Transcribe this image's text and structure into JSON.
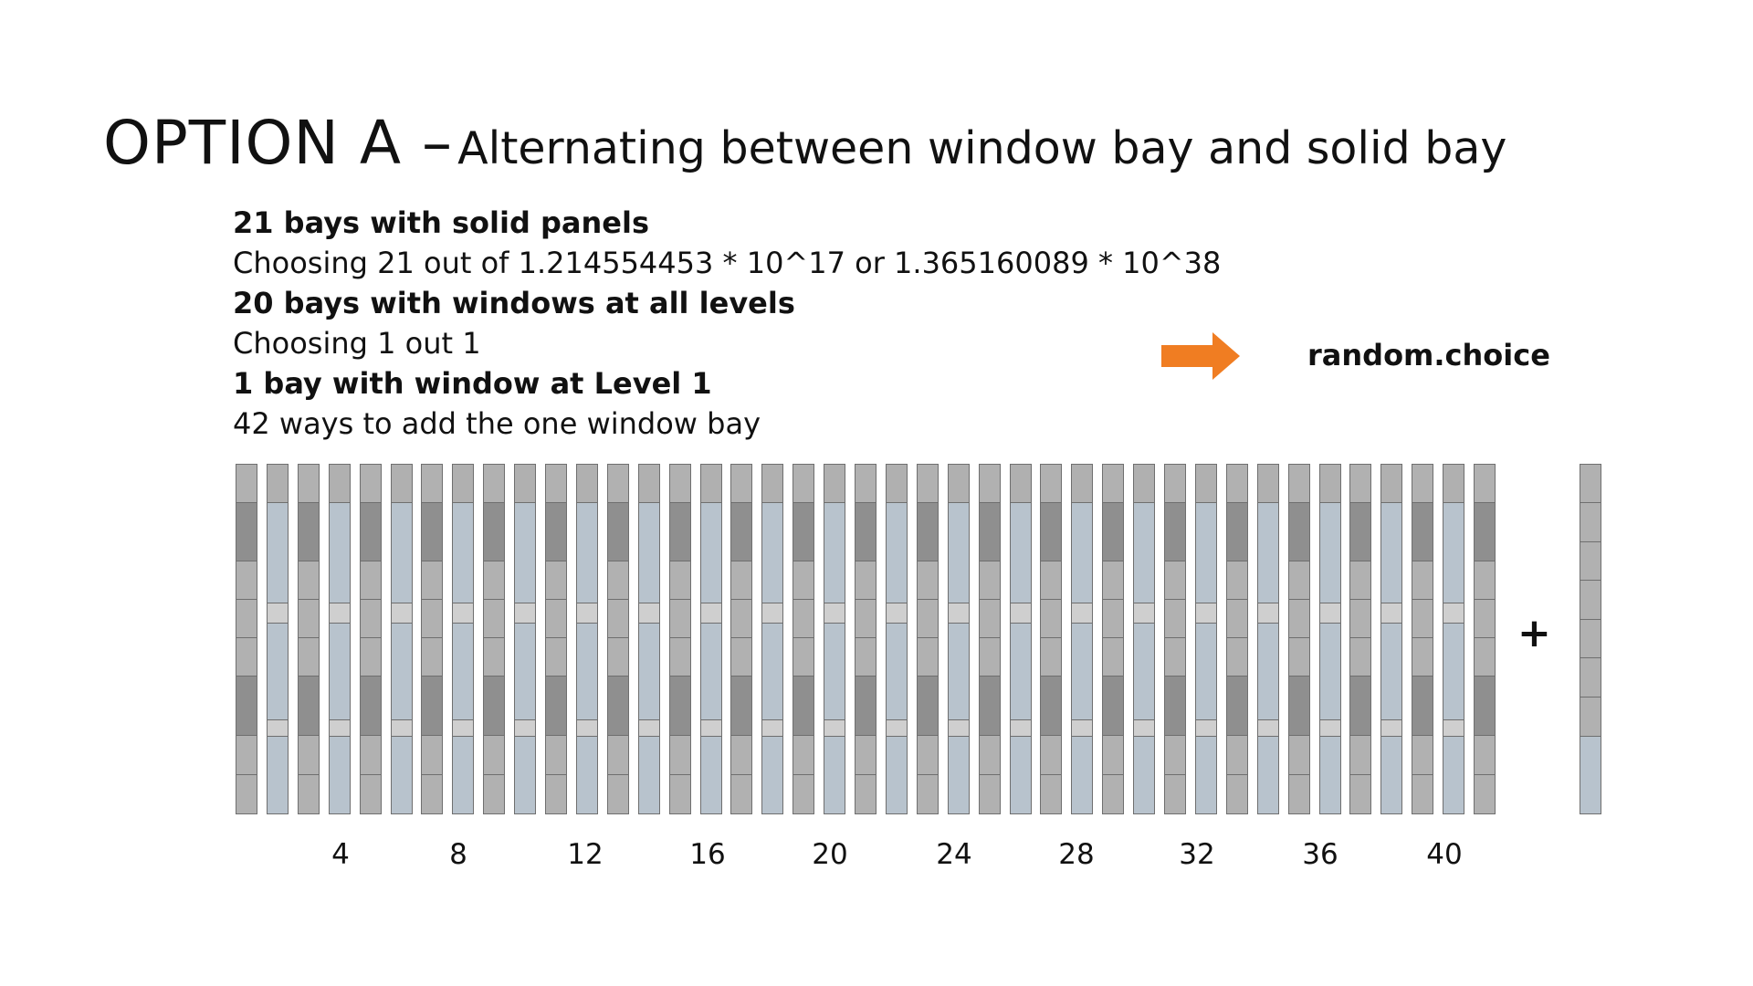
{
  "title": {
    "main": "OPTION A –",
    "sub": "Alternating between window bay and solid bay"
  },
  "info_lines": [
    {
      "text": "21 bays with solid panels",
      "bold": true
    },
    {
      "text": "Choosing 21 out of 1.214554453 * 10^17 or 1.365160089 * 10^38",
      "bold": false
    },
    {
      "text": "20 bays with windows at all levels",
      "bold": true
    },
    {
      "text": "Choosing 1 out 1",
      "bold": false
    },
    {
      "text": "1 bay with window at Level 1",
      "bold": true
    },
    {
      "text": "42 ways to add the one window bay",
      "bold": false
    }
  ],
  "arrow": {
    "icon": "right-arrow-icon",
    "color": "#f07d22"
  },
  "random_choice_label": "random.choice",
  "plus_label": "+",
  "facade": {
    "bay_count": 41,
    "pattern": "alternating: solid bay at odd positions, window bay at even positions",
    "axis_labels": [
      "4",
      "8",
      "12",
      "16",
      "20",
      "24",
      "28",
      "32",
      "36",
      "40"
    ],
    "colors": {
      "solid_light": "#b1b1b1",
      "solid_dark": "#8f8f8f",
      "window_glass": "#b8c3cd",
      "window_frame": "#b0b0b0",
      "floor_band": "#cfcfcf",
      "outline": "#6f6f6f"
    }
  },
  "extra_bay": {
    "description": "single bay with window at Level 1 only"
  }
}
